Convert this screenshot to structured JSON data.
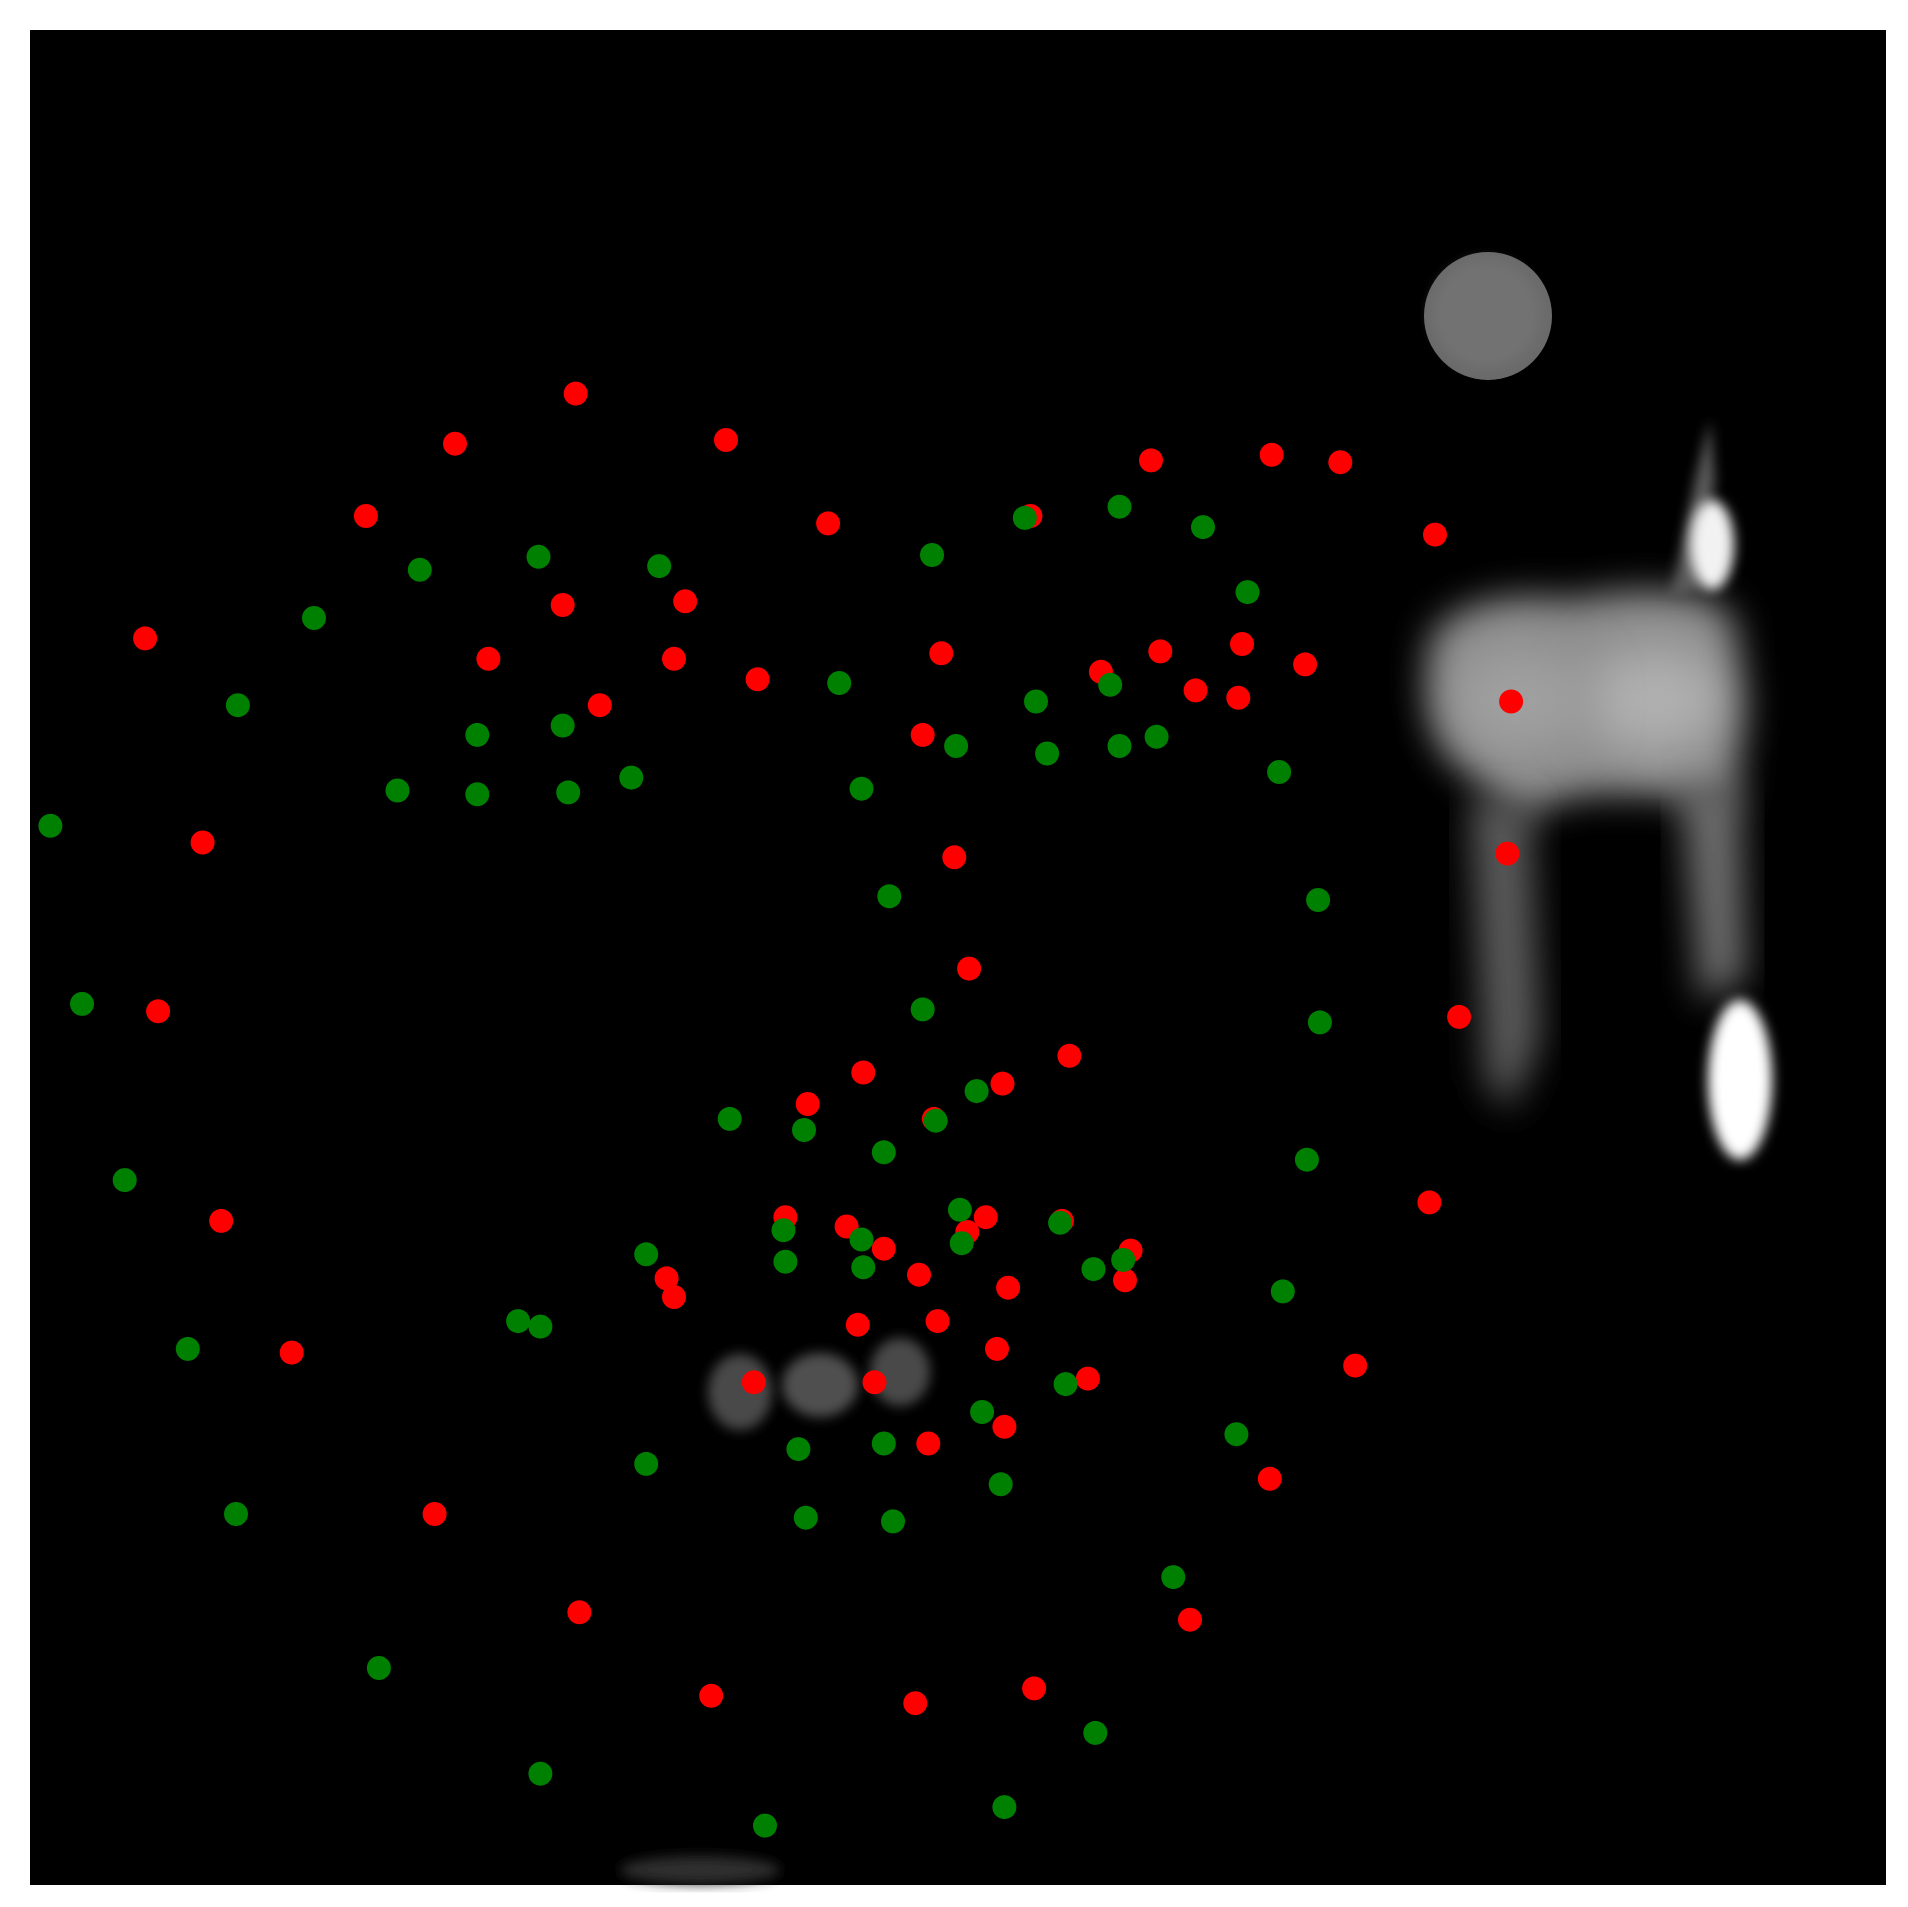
{
  "image": {
    "kind": "scatter-overlay-on-grayscale-image",
    "background_color": "#000000",
    "frame_color": "#ffffff",
    "axes_visible": false,
    "grid": false,
    "legend": "none"
  },
  "chart_data": {
    "type": "scatter",
    "title": "",
    "xlabel": "",
    "ylabel": "",
    "xlim": [
      0,
      1
    ],
    "ylim": [
      1,
      0
    ],
    "series": [
      {
        "color": "#ff0000",
        "points": [
          [
            0.294,
            0.196
          ],
          [
            0.229,
            0.223
          ],
          [
            0.375,
            0.221
          ],
          [
            0.181,
            0.262
          ],
          [
            0.43,
            0.266
          ],
          [
            0.604,
            0.232
          ],
          [
            0.669,
            0.229
          ],
          [
            0.706,
            0.233
          ],
          [
            0.539,
            0.262
          ],
          [
            0.757,
            0.272
          ],
          [
            0.062,
            0.328
          ],
          [
            0.287,
            0.31
          ],
          [
            0.353,
            0.308
          ],
          [
            0.247,
            0.339
          ],
          [
            0.347,
            0.339
          ],
          [
            0.392,
            0.35
          ],
          [
            0.307,
            0.364
          ],
          [
            0.491,
            0.336
          ],
          [
            0.577,
            0.346
          ],
          [
            0.609,
            0.335
          ],
          [
            0.653,
            0.331
          ],
          [
            0.687,
            0.342
          ],
          [
            0.628,
            0.356
          ],
          [
            0.651,
            0.36
          ],
          [
            0.481,
            0.38
          ],
          [
            0.798,
            0.362
          ],
          [
            0.093,
            0.438
          ],
          [
            0.498,
            0.446
          ],
          [
            0.796,
            0.444
          ],
          [
            0.506,
            0.506
          ],
          [
            0.77,
            0.532
          ],
          [
            0.069,
            0.529
          ],
          [
            0.56,
            0.553
          ],
          [
            0.449,
            0.562
          ],
          [
            0.419,
            0.579
          ],
          [
            0.524,
            0.568
          ],
          [
            0.487,
            0.587
          ],
          [
            0.103,
            0.642
          ],
          [
            0.754,
            0.632
          ],
          [
            0.407,
            0.64
          ],
          [
            0.44,
            0.645
          ],
          [
            0.515,
            0.64
          ],
          [
            0.505,
            0.648
          ],
          [
            0.556,
            0.642
          ],
          [
            0.593,
            0.658
          ],
          [
            0.343,
            0.673
          ],
          [
            0.347,
            0.683
          ],
          [
            0.46,
            0.657
          ],
          [
            0.479,
            0.671
          ],
          [
            0.527,
            0.678
          ],
          [
            0.59,
            0.674
          ],
          [
            0.446,
            0.698
          ],
          [
            0.489,
            0.696
          ],
          [
            0.521,
            0.711
          ],
          [
            0.141,
            0.713
          ],
          [
            0.714,
            0.72
          ],
          [
            0.39,
            0.729
          ],
          [
            0.455,
            0.729
          ],
          [
            0.57,
            0.727
          ],
          [
            0.484,
            0.762
          ],
          [
            0.525,
            0.753
          ],
          [
            0.668,
            0.781
          ],
          [
            0.218,
            0.8
          ],
          [
            0.296,
            0.853
          ],
          [
            0.625,
            0.857
          ],
          [
            0.367,
            0.898
          ],
          [
            0.477,
            0.902
          ],
          [
            0.541,
            0.894
          ]
        ]
      },
      {
        "color": "#008000",
        "points": [
          [
            0.536,
            0.263
          ],
          [
            0.587,
            0.257
          ],
          [
            0.632,
            0.268
          ],
          [
            0.486,
            0.283
          ],
          [
            0.274,
            0.284
          ],
          [
            0.21,
            0.291
          ],
          [
            0.339,
            0.289
          ],
          [
            0.153,
            0.317
          ],
          [
            0.656,
            0.303
          ],
          [
            0.112,
            0.364
          ],
          [
            0.436,
            0.352
          ],
          [
            0.582,
            0.353
          ],
          [
            0.542,
            0.362
          ],
          [
            0.241,
            0.38
          ],
          [
            0.287,
            0.375
          ],
          [
            0.499,
            0.386
          ],
          [
            0.548,
            0.39
          ],
          [
            0.587,
            0.386
          ],
          [
            0.607,
            0.381
          ],
          [
            0.198,
            0.41
          ],
          [
            0.241,
            0.412
          ],
          [
            0.29,
            0.411
          ],
          [
            0.324,
            0.403
          ],
          [
            0.448,
            0.409
          ],
          [
            0.673,
            0.4
          ],
          [
            0.011,
            0.429
          ],
          [
            0.463,
            0.467
          ],
          [
            0.694,
            0.469
          ],
          [
            0.028,
            0.525
          ],
          [
            0.481,
            0.528
          ],
          [
            0.695,
            0.535
          ],
          [
            0.51,
            0.572
          ],
          [
            0.377,
            0.587
          ],
          [
            0.417,
            0.593
          ],
          [
            0.488,
            0.588
          ],
          [
            0.46,
            0.605
          ],
          [
            0.688,
            0.609
          ],
          [
            0.051,
            0.62
          ],
          [
            0.406,
            0.647
          ],
          [
            0.448,
            0.652
          ],
          [
            0.501,
            0.636
          ],
          [
            0.502,
            0.654
          ],
          [
            0.555,
            0.643
          ],
          [
            0.332,
            0.66
          ],
          [
            0.407,
            0.664
          ],
          [
            0.449,
            0.667
          ],
          [
            0.573,
            0.668
          ],
          [
            0.589,
            0.663
          ],
          [
            0.675,
            0.68
          ],
          [
            0.263,
            0.696
          ],
          [
            0.275,
            0.699
          ],
          [
            0.085,
            0.711
          ],
          [
            0.558,
            0.73
          ],
          [
            0.513,
            0.745
          ],
          [
            0.414,
            0.765
          ],
          [
            0.46,
            0.762
          ],
          [
            0.332,
            0.773
          ],
          [
            0.65,
            0.757
          ],
          [
            0.523,
            0.784
          ],
          [
            0.111,
            0.8
          ],
          [
            0.418,
            0.802
          ],
          [
            0.465,
            0.804
          ],
          [
            0.616,
            0.834
          ],
          [
            0.188,
            0.883
          ],
          [
            0.574,
            0.918
          ],
          [
            0.275,
            0.94
          ],
          [
            0.525,
            0.958
          ],
          [
            0.396,
            0.968
          ]
        ]
      }
    ]
  },
  "blobs": [
    {
      "shape": "disk",
      "label": "upper-right-disk"
    },
    {
      "shape": "body",
      "label": "right-bright-region"
    },
    {
      "shape": "spots",
      "label": "lower-center-spots"
    }
  ]
}
